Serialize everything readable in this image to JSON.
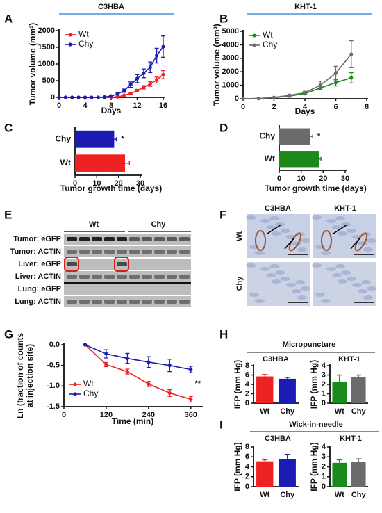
{
  "panel_labels": [
    "A",
    "B",
    "C",
    "D",
    "E",
    "F",
    "G",
    "H",
    "I"
  ],
  "gel": {
    "groups": [
      "Wt",
      "Chy"
    ],
    "rows": [
      "Tumor: eGFP",
      "Tumor: ACTIN",
      "Liver: eGFP",
      "Liver: ACTIN",
      "Lung: eGFP",
      "Lung: ACTIN"
    ]
  },
  "histology": {
    "columns": [
      "C3HBA",
      "KHT-1"
    ],
    "rows": [
      "Wt",
      "Chy"
    ]
  },
  "sections": {
    "micropuncture": "Micropuncture",
    "wick": "Wick-in-needle"
  },
  "chart_data": [
    {
      "type": "line",
      "title": "C3HBA",
      "xlabel": "Days",
      "ylabel": "Tumor volume (mm³)",
      "x": [
        0,
        1,
        2,
        3,
        4,
        5,
        6,
        7,
        8,
        9,
        10,
        11,
        12,
        13,
        14,
        15,
        16
      ],
      "xlim": [
        0,
        16
      ],
      "xticks": [
        0,
        4,
        8,
        12,
        16
      ],
      "ylim": [
        0,
        2000
      ],
      "yticks": [
        0,
        500,
        1000,
        1500,
        2000
      ],
      "legend": "upper left",
      "series": [
        {
          "name": "Wt",
          "color": "#ee2222",
          "values": [
            0,
            0,
            0,
            0,
            0,
            0,
            0,
            0,
            5,
            15,
            60,
            120,
            200,
            300,
            400,
            520,
            680
          ],
          "errors": [
            0,
            0,
            0,
            0,
            0,
            0,
            0,
            0,
            5,
            10,
            20,
            30,
            40,
            50,
            70,
            90,
            120
          ]
        },
        {
          "name": "Chy",
          "color": "#1c1cb4",
          "values": [
            0,
            0,
            0,
            0,
            0,
            0,
            0,
            10,
            40,
            100,
            200,
            380,
            560,
            720,
            900,
            1250,
            1520
          ],
          "errors": [
            0,
            0,
            0,
            0,
            0,
            0,
            0,
            5,
            15,
            30,
            50,
            80,
            120,
            130,
            160,
            220,
            320
          ]
        }
      ]
    },
    {
      "type": "line",
      "title": "KHT-1",
      "xlabel": "Days",
      "ylabel": "Tumor volume (mm³)",
      "x": [
        0,
        1,
        2,
        3,
        4,
        5,
        6,
        7
      ],
      "xlim": [
        0,
        8
      ],
      "xticks": [
        0,
        2,
        4,
        6,
        8
      ],
      "ylim": [
        0,
        5000
      ],
      "yticks": [
        0,
        1000,
        2000,
        3000,
        4000,
        5000
      ],
      "legend": "upper left",
      "series": [
        {
          "name": "Wt",
          "color": "#1a8a1a",
          "values": [
            0,
            20,
            80,
            200,
            380,
            800,
            1200,
            1550
          ],
          "errors": [
            0,
            10,
            20,
            40,
            80,
            150,
            250,
            380
          ]
        },
        {
          "name": "Chy",
          "color": "#6b6b6b",
          "values": [
            0,
            20,
            100,
            250,
            450,
            1000,
            1900,
            3300
          ],
          "errors": [
            0,
            10,
            30,
            50,
            100,
            300,
            500,
            1000
          ]
        }
      ]
    },
    {
      "type": "bar",
      "orientation": "horizontal",
      "xlabel": "Tumor growth time  (days)",
      "categories": [
        "Chy",
        "Wt"
      ],
      "values": [
        18,
        23
      ],
      "errors": [
        1,
        2
      ],
      "colors": [
        "#1c1cb4",
        "#ee2222"
      ],
      "xlim": [
        0,
        30
      ],
      "xticks": [
        0,
        10,
        20,
        30
      ],
      "annotation": "*"
    },
    {
      "type": "bar",
      "orientation": "horizontal",
      "xlabel": "Tumor growth time (days)",
      "categories": [
        "Chy",
        "Wt"
      ],
      "values": [
        14,
        18
      ],
      "errors": [
        1.2,
        1
      ],
      "colors": [
        "#6b6b6b",
        "#1a8a1a"
      ],
      "xlim": [
        0,
        30
      ],
      "xticks": [
        0,
        10,
        20,
        30
      ],
      "annotation": "*"
    },
    {
      "type": "line",
      "xlabel": "Time (min)",
      "ylabel": [
        "Ln (fraction of counts",
        "at injection site)"
      ],
      "x": [
        60,
        120,
        180,
        240,
        300,
        360
      ],
      "xlim": [
        0,
        390
      ],
      "xticks": [
        0,
        120,
        240,
        360
      ],
      "ylim": [
        -1.5,
        0
      ],
      "yticks": [
        -1.5,
        {
          "value": -1,
          "label": "-1.0"
        },
        -0.5,
        {
          "value": 0,
          "label": "0.0"
        }
      ],
      "legend": "lower left",
      "annotation": "**",
      "series": [
        {
          "name": "Wt",
          "color": "#ee2222",
          "values": [
            0,
            -0.48,
            -0.65,
            -0.95,
            -1.17,
            -1.32
          ],
          "errors": [
            0,
            0.05,
            0.06,
            0.06,
            0.08,
            0.07
          ]
        },
        {
          "name": "Chy",
          "color": "#1c1cb4",
          "values": [
            0,
            -0.22,
            -0.33,
            -0.42,
            -0.5,
            -0.6
          ],
          "errors": [
            0,
            0.1,
            0.12,
            0.13,
            0.15,
            0.08
          ]
        }
      ]
    },
    {
      "type": "bar",
      "orientation": "vertical",
      "title": "C3HBA",
      "ylabel": "IFP (mm Hg)",
      "categories": [
        "Wt",
        "Chy"
      ],
      "values": [
        5.7,
        5.2
      ],
      "errors": [
        0.4,
        0.3
      ],
      "colors": [
        "#ee2222",
        "#1c1cb4"
      ],
      "ylim": [
        0,
        8
      ],
      "yticks": [
        0,
        2,
        4,
        6,
        8
      ]
    },
    {
      "type": "bar",
      "orientation": "vertical",
      "title": "KHT-1",
      "ylabel": "IFP (mm Hg)",
      "categories": [
        "Wt",
        "Chy"
      ],
      "values": [
        2.3,
        2.8
      ],
      "errors": [
        0.7,
        0.2
      ],
      "colors": [
        "#1a8a1a",
        "#6b6b6b"
      ],
      "ylim": [
        0,
        4
      ],
      "yticks": [
        0,
        1,
        2,
        3,
        4
      ]
    },
    {
      "type": "bar",
      "orientation": "vertical",
      "title": "C3HBA",
      "ylabel": "IFP (mm Hg)",
      "categories": [
        "Wt",
        "Chy"
      ],
      "values": [
        5.1,
        5.6
      ],
      "errors": [
        0.3,
        0.9
      ],
      "colors": [
        "#ee2222",
        "#1c1cb4"
      ],
      "ylim": [
        0,
        8
      ],
      "yticks": [
        0,
        2,
        4,
        6,
        8
      ]
    },
    {
      "type": "bar",
      "orientation": "vertical",
      "title": "KHT-1",
      "ylabel": "IFP (mm Hg)",
      "categories": [
        "Wt",
        "Chy"
      ],
      "values": [
        2.4,
        2.5
      ],
      "errors": [
        0.3,
        0.3
      ],
      "colors": [
        "#1a8a1a",
        "#6b6b6b"
      ],
      "ylim": [
        0,
        4
      ],
      "yticks": [
        0,
        1,
        2,
        3,
        4
      ]
    }
  ]
}
